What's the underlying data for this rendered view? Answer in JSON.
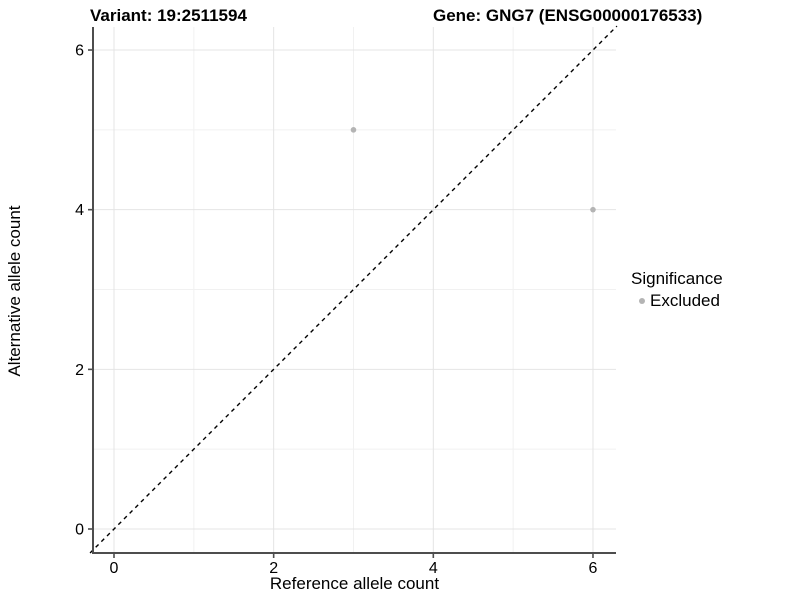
{
  "header": {
    "title_variant": "Variant: 19:2511594",
    "title_gene": "Gene: GNG7 (ENSG00000176533)"
  },
  "chart_data": {
    "type": "scatter",
    "xlabel": "Reference allele count",
    "ylabel": "Alternative allele count",
    "xlim": [
      -0.3,
      6.3
    ],
    "ylim": [
      -0.3,
      6.3
    ],
    "x_ticks": [
      0,
      2,
      4,
      6
    ],
    "y_ticks": [
      0,
      2,
      4,
      6
    ],
    "x_minor_gridlines": [
      1,
      3,
      5
    ],
    "y_minor_gridlines": [
      1,
      3,
      5
    ],
    "grid": "on",
    "series": [
      {
        "name": "Excluded",
        "color": "#b4b4b4",
        "points": [
          [
            3,
            5
          ],
          [
            6,
            4
          ]
        ]
      }
    ],
    "reference_line": {
      "type": "identity y=x",
      "style": "dashed",
      "color": "#000000"
    },
    "legend": {
      "position": "right",
      "title": "Significance",
      "entries": [
        {
          "label": "Excluded",
          "marker": "circle",
          "color": "#b4b4b4"
        }
      ]
    },
    "colors": {
      "grid_major": "#e4e4e4",
      "grid_minor": "#f1f1f1",
      "axis_line": "#4d4d4d",
      "text": "#000000"
    }
  }
}
